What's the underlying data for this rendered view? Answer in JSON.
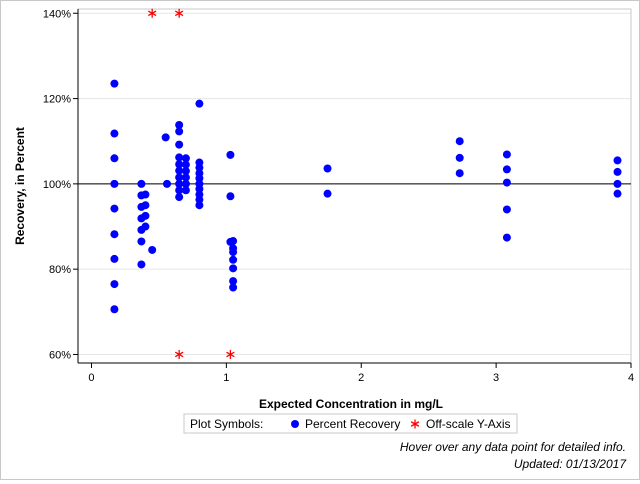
{
  "chart_data": {
    "type": "scatter",
    "xlabel": "Expected Concentration in mg/L",
    "ylabel": "Recovery, in Percent",
    "xlim": [
      -0.1,
      4.0
    ],
    "ylim": [
      58,
      141
    ],
    "x_ticks": [
      0,
      1,
      2,
      3,
      4
    ],
    "y_ticks": [
      60,
      80,
      100,
      120,
      140
    ],
    "y_tick_suffix": "%",
    "reference_line_y": 100,
    "grid": true,
    "legend": {
      "title": "Plot Symbols:",
      "placement": "bottom-center",
      "entries": [
        "Percent Recovery",
        "Off-scale Y-Axis"
      ]
    },
    "series": [
      {
        "name": "Percent Recovery",
        "marker": "circle",
        "color": "#0000ff",
        "points": [
          [
            0.17,
            123.5
          ],
          [
            0.17,
            111.8
          ],
          [
            0.17,
            106.0
          ],
          [
            0.17,
            100.0
          ],
          [
            0.17,
            94.2
          ],
          [
            0.17,
            88.2
          ],
          [
            0.17,
            82.4
          ],
          [
            0.17,
            76.5
          ],
          [
            0.17,
            70.6
          ],
          [
            0.37,
            100.0
          ],
          [
            0.37,
            97.3
          ],
          [
            0.37,
            94.6
          ],
          [
            0.37,
            91.9
          ],
          [
            0.37,
            89.2
          ],
          [
            0.37,
            86.5
          ],
          [
            0.37,
            81.1
          ],
          [
            0.4,
            97.5
          ],
          [
            0.4,
            95.0
          ],
          [
            0.4,
            92.5
          ],
          [
            0.4,
            90.0
          ],
          [
            0.45,
            84.5
          ],
          [
            0.55,
            110.9
          ],
          [
            0.56,
            100.0
          ],
          [
            0.65,
            113.8
          ],
          [
            0.65,
            112.3
          ],
          [
            0.65,
            109.2
          ],
          [
            0.65,
            106.2
          ],
          [
            0.65,
            104.6
          ],
          [
            0.65,
            103.1
          ],
          [
            0.65,
            101.5
          ],
          [
            0.65,
            100.0
          ],
          [
            0.65,
            98.5
          ],
          [
            0.65,
            96.9
          ],
          [
            0.7,
            106.0
          ],
          [
            0.7,
            104.5
          ],
          [
            0.7,
            103.0
          ],
          [
            0.7,
            101.5
          ],
          [
            0.7,
            100.0
          ],
          [
            0.7,
            98.5
          ],
          [
            0.8,
            118.8
          ],
          [
            0.8,
            105.0
          ],
          [
            0.8,
            103.8
          ],
          [
            0.8,
            102.5
          ],
          [
            0.8,
            101.3
          ],
          [
            0.8,
            100.0
          ],
          [
            0.8,
            98.8
          ],
          [
            0.8,
            97.5
          ],
          [
            0.8,
            96.3
          ],
          [
            0.8,
            95.0
          ],
          [
            1.03,
            106.8
          ],
          [
            1.03,
            97.1
          ],
          [
            1.03,
            86.4
          ],
          [
            1.05,
            86.6
          ],
          [
            1.05,
            84.9
          ],
          [
            1.05,
            84.0
          ],
          [
            1.05,
            82.2
          ],
          [
            1.05,
            80.2
          ],
          [
            1.05,
            77.2
          ],
          [
            1.05,
            75.7
          ],
          [
            1.75,
            103.6
          ],
          [
            1.75,
            97.7
          ],
          [
            2.73,
            110.0
          ],
          [
            2.73,
            106.1
          ],
          [
            2.73,
            102.5
          ],
          [
            3.08,
            106.9
          ],
          [
            3.08,
            103.4
          ],
          [
            3.08,
            100.3
          ],
          [
            3.08,
            94.0
          ],
          [
            3.08,
            87.4
          ],
          [
            3.9,
            105.5
          ],
          [
            3.9,
            102.8
          ],
          [
            3.9,
            100.0
          ],
          [
            3.9,
            97.7
          ]
        ]
      },
      {
        "name": "Off-scale Y-Axis",
        "marker": "asterisk",
        "color": "#ff0000",
        "points": [
          [
            0.45,
            140
          ],
          [
            0.65,
            140
          ],
          [
            0.65,
            60
          ],
          [
            1.03,
            60
          ]
        ]
      }
    ]
  },
  "footnotes": {
    "hover_hint": "Hover over any data point for detailed info.",
    "updated": "Updated: 01/13/2017"
  }
}
